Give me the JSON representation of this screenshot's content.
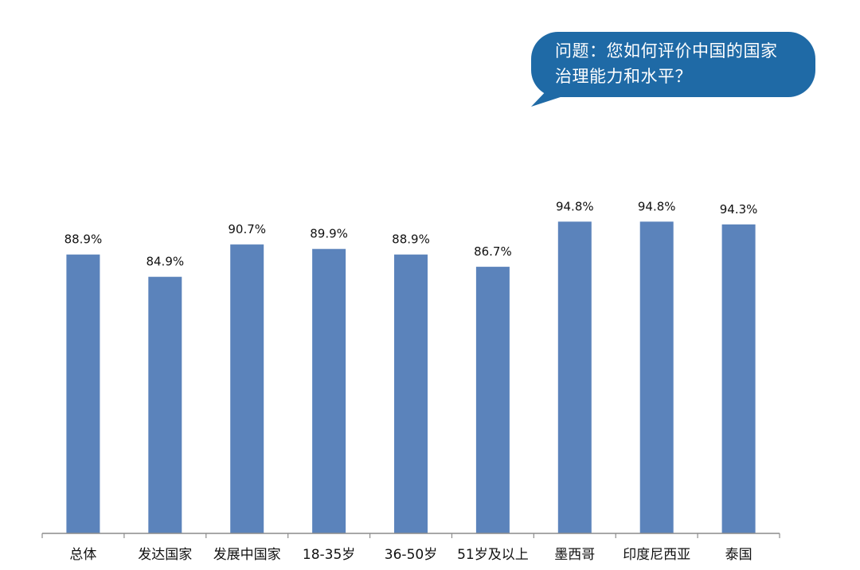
{
  "question": {
    "line1": "问题：您如何评价中国的国家",
    "line2": "治理能力和水平？"
  },
  "colors": {
    "bar": "#5b83bb",
    "bubble": "#1f6aa6",
    "axis": "#8c8c8c",
    "text": "#111111"
  },
  "chart_data": {
    "type": "bar",
    "categories": [
      "总体",
      "发达国家",
      "发展中国家",
      "18-35岁",
      "36-50岁",
      "51岁及以上",
      "墨西哥",
      "印度尼西亚",
      "泰国"
    ],
    "values": [
      88.9,
      84.9,
      90.7,
      89.9,
      88.9,
      86.7,
      94.8,
      94.8,
      94.3
    ],
    "data_labels": [
      "88.9%",
      "84.9%",
      "90.7%",
      "89.9%",
      "88.9%",
      "86.7%",
      "94.8%",
      "94.8%",
      "94.3%"
    ],
    "ylim": [
      0,
      100
    ],
    "grid": false,
    "legend": "none"
  }
}
